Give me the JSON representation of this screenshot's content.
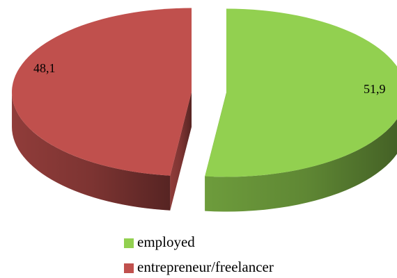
{
  "chart_data": {
    "type": "pie",
    "categories": [
      "employed",
      "entrepreneur/freelancer"
    ],
    "values": [
      51.9,
      48.1
    ],
    "value_labels": [
      "51,9",
      "48,1"
    ],
    "colors": [
      "#92d050",
      "#c0504d"
    ],
    "legend": "bottom"
  }
}
